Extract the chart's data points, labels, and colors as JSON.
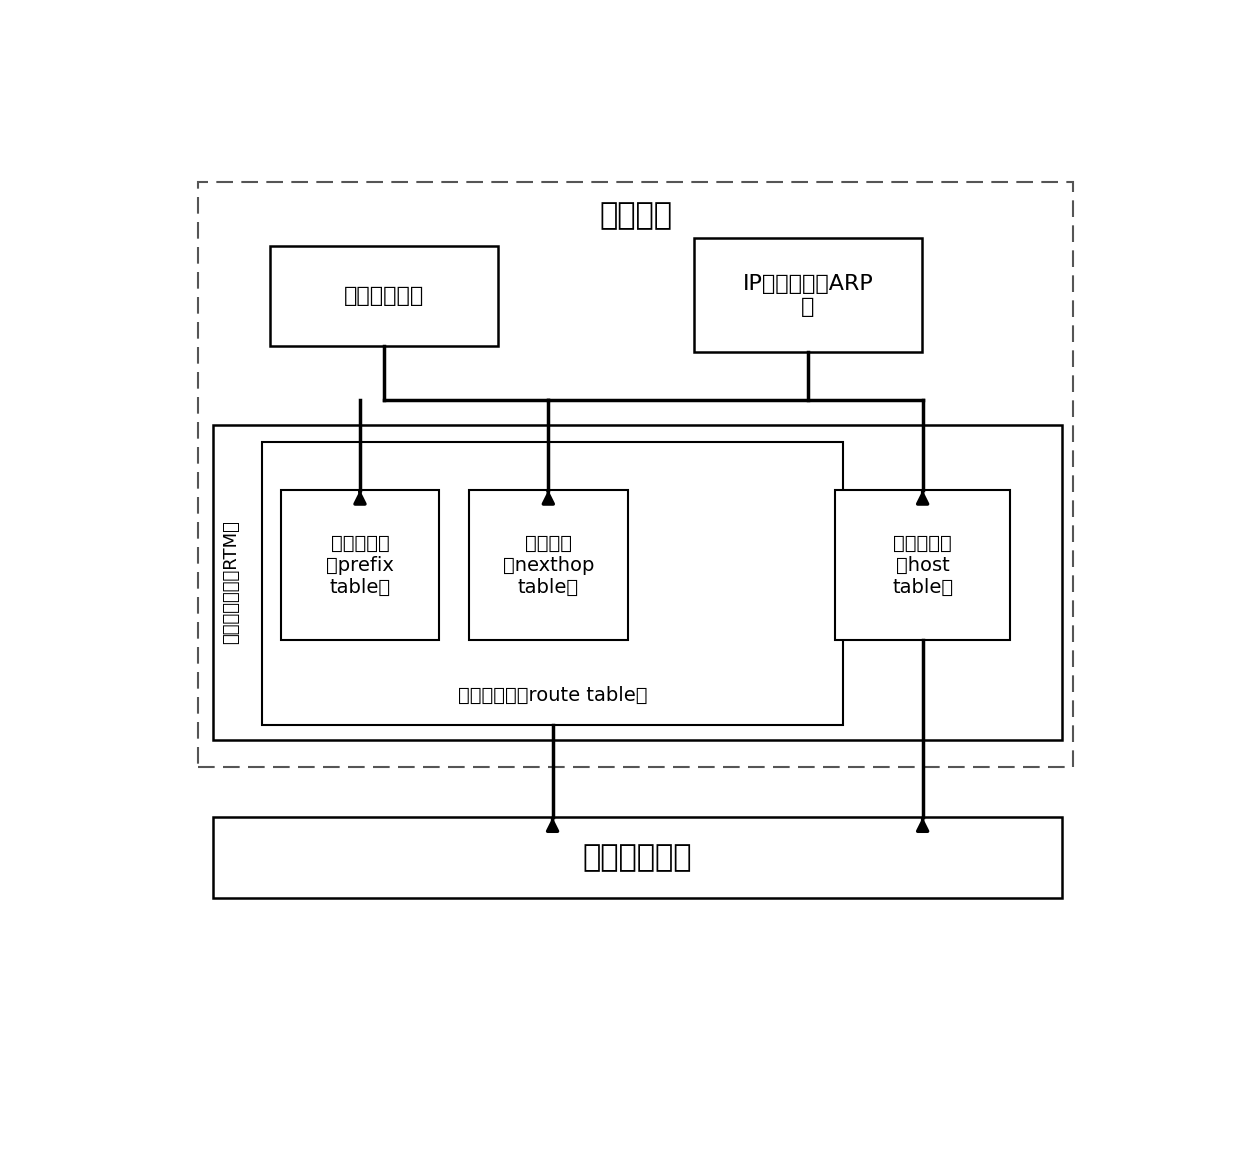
{
  "title_control": "控制平面",
  "title_data": "数据转发平面",
  "rtm_label": "路由管理模块（RTM）",
  "box1_label": "路由协议模块",
  "box2_label": "IP协议栈中的ARP\n表",
  "box3_label": "目的前缀表\n（prefix\ntable）",
  "box4_label": "下一跳表\n（nexthop\ntable）",
  "box5_label": "主机路由表\n（host\ntable）",
  "route_table_label": "网段路由表（route table）",
  "bg_color": "#ffffff",
  "font_size_title": 22,
  "font_size_label": 16,
  "font_size_small": 14,
  "font_size_rtm": 13
}
